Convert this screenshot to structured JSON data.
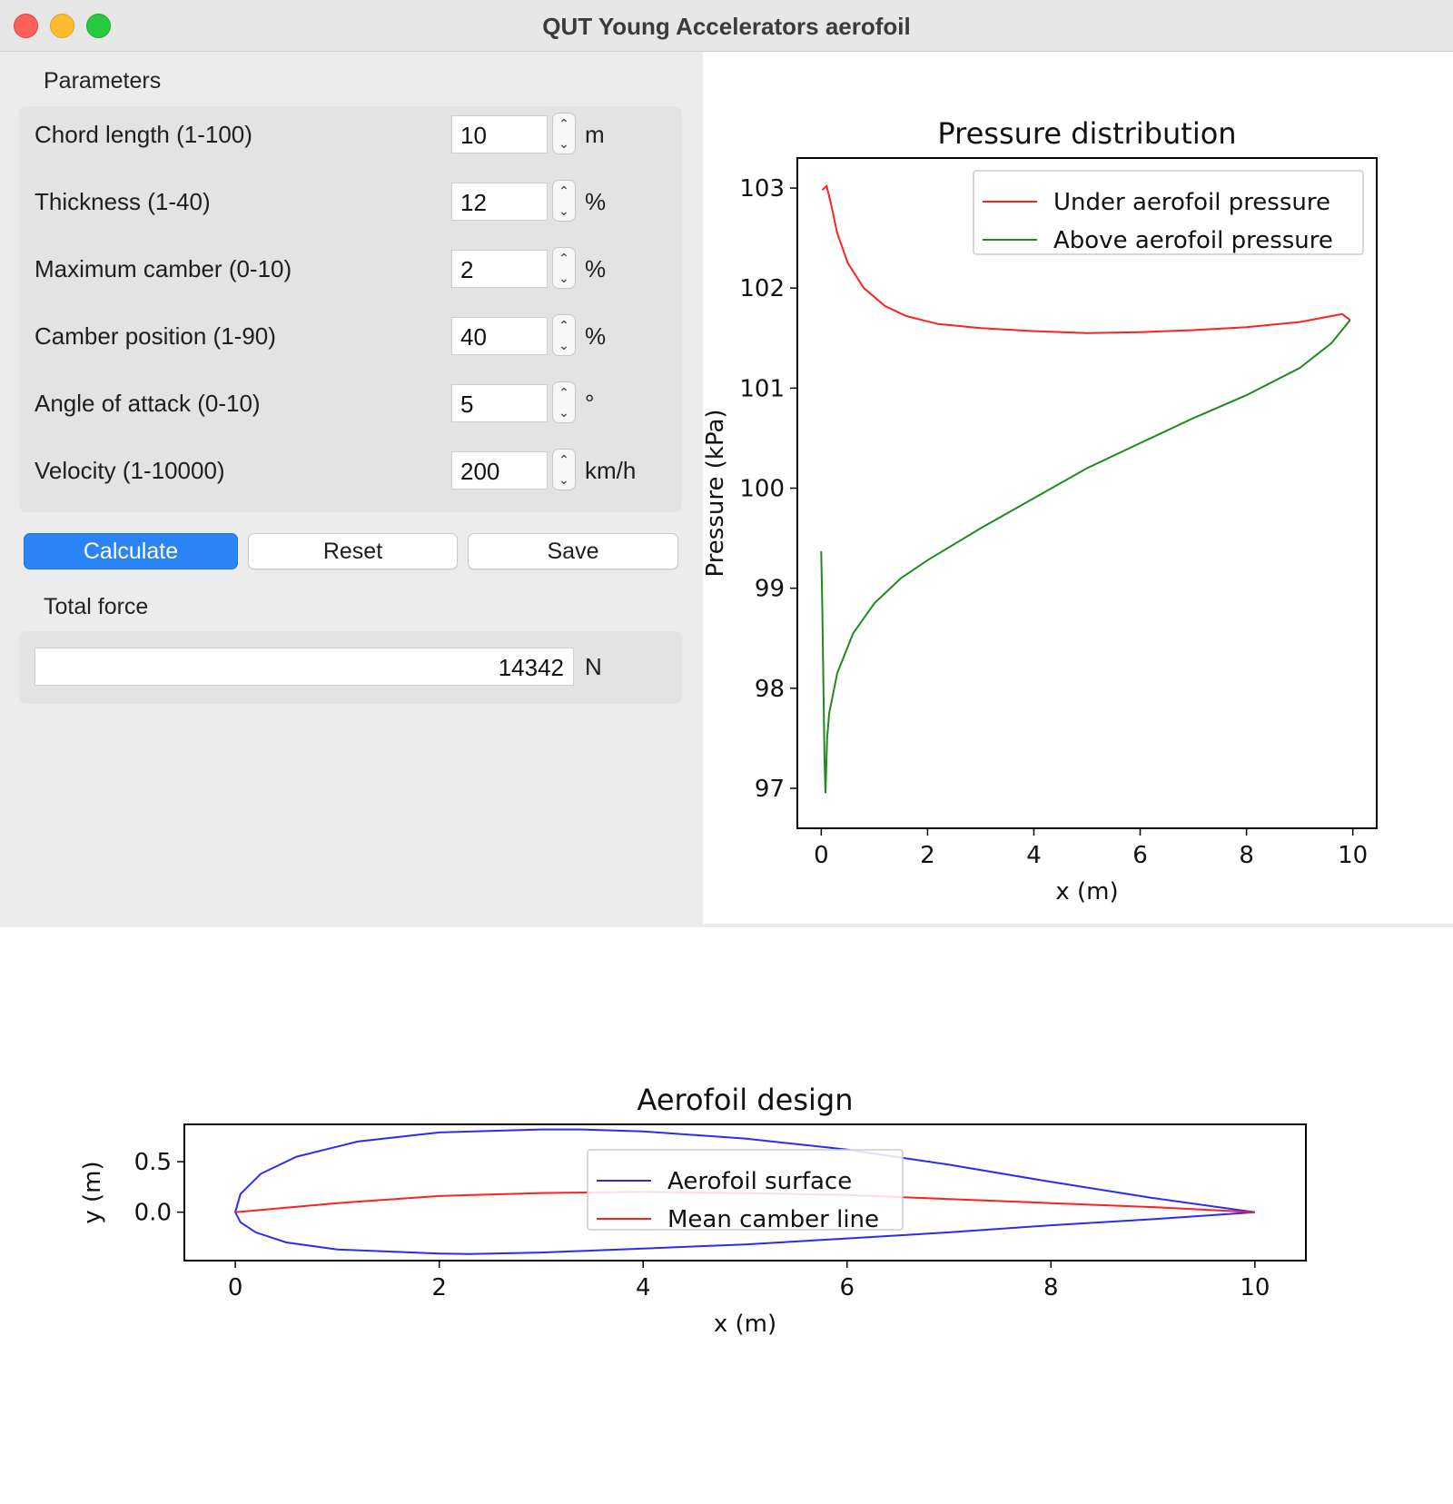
{
  "window": {
    "title": "QUT Young Accelerators aerofoil"
  },
  "parameters": {
    "group_title": "Parameters",
    "rows": [
      {
        "label": "Chord length (1-100)",
        "value": "10",
        "unit": "m"
      },
      {
        "label": "Thickness (1-40)",
        "value": "12",
        "unit": "%"
      },
      {
        "label": "Maximum camber (0-10)",
        "value": "2",
        "unit": "%"
      },
      {
        "label": "Camber position (1-90)",
        "value": "40",
        "unit": "%"
      },
      {
        "label": "Angle of attack (0-10)",
        "value": "5",
        "unit": "°"
      },
      {
        "label": "Velocity (1-10000)",
        "value": "200",
        "unit": "km/h"
      }
    ]
  },
  "buttons": {
    "calculate": "Calculate",
    "reset": "Reset",
    "save": "Save"
  },
  "force": {
    "group_title": "Total force",
    "value": "14342",
    "unit": "N"
  },
  "colors": {
    "accent": "#2a84f6",
    "under": "#ff2020",
    "above": "#1e8a1e",
    "surface": "#2b2bf5",
    "camber": "#ff2020"
  },
  "chart_data": [
    {
      "type": "line",
      "title": "Pressure distribution",
      "xlabel": "x (m)",
      "ylabel": "Pressure (kPa)",
      "xlim": [
        -0.45,
        10.45
      ],
      "ylim": [
        96.6,
        103.3
      ],
      "xticks": [
        "0",
        "2",
        "4",
        "6",
        "8",
        "10"
      ],
      "yticks": [
        "97",
        "98",
        "99",
        "100",
        "101",
        "102",
        "103"
      ],
      "legend": "top-right",
      "series": [
        {
          "name": "Under aerofoil pressure",
          "color": "#ff2020",
          "points": [
            [
              0.02,
              102.98
            ],
            [
              0.1,
              103.02
            ],
            [
              0.18,
              102.85
            ],
            [
              0.3,
              102.55
            ],
            [
              0.5,
              102.25
            ],
            [
              0.8,
              102.0
            ],
            [
              1.2,
              101.82
            ],
            [
              1.6,
              101.72
            ],
            [
              2.2,
              101.64
            ],
            [
              3.0,
              101.6
            ],
            [
              4.0,
              101.57
            ],
            [
              5.0,
              101.55
            ],
            [
              6.0,
              101.56
            ],
            [
              7.0,
              101.58
            ],
            [
              8.0,
              101.61
            ],
            [
              9.0,
              101.66
            ],
            [
              9.6,
              101.72
            ],
            [
              9.8,
              101.74
            ],
            [
              9.95,
              101.68
            ]
          ]
        },
        {
          "name": "Above aerofoil pressure",
          "color": "#1e8a1e",
          "points": [
            [
              0.0,
              99.37
            ],
            [
              0.02,
              98.8
            ],
            [
              0.06,
              97.3
            ],
            [
              0.08,
              96.95
            ],
            [
              0.11,
              97.5
            ],
            [
              0.15,
              97.75
            ],
            [
              0.3,
              98.15
            ],
            [
              0.6,
              98.55
            ],
            [
              1.0,
              98.85
            ],
            [
              1.5,
              99.1
            ],
            [
              2.0,
              99.28
            ],
            [
              3.0,
              99.6
            ],
            [
              4.0,
              99.9
            ],
            [
              5.0,
              100.2
            ],
            [
              6.0,
              100.45
            ],
            [
              7.0,
              100.7
            ],
            [
              8.0,
              100.93
            ],
            [
              9.0,
              101.2
            ],
            [
              9.6,
              101.45
            ],
            [
              9.95,
              101.68
            ]
          ]
        }
      ]
    },
    {
      "type": "line",
      "title": "Aerofoil design",
      "xlabel": "x (m)",
      "ylabel": "y (m)",
      "xlim": [
        -0.5,
        10.5
      ],
      "ylim": [
        -0.48,
        0.87
      ],
      "xticks": [
        "0",
        "2",
        "4",
        "6",
        "8",
        "10"
      ],
      "yticks": [
        "0.0",
        "0.5"
      ],
      "legend": "top-center",
      "series": [
        {
          "name": "Aerofoil surface",
          "color": "#2b2bf5",
          "points": [
            [
              10,
              0.0
            ],
            [
              9,
              0.14
            ],
            [
              8,
              0.3
            ],
            [
              7,
              0.47
            ],
            [
              6,
              0.62
            ],
            [
              5,
              0.73
            ],
            [
              4,
              0.8
            ],
            [
              3.4,
              0.82
            ],
            [
              3,
              0.82
            ],
            [
              2,
              0.79
            ],
            [
              1.2,
              0.7
            ],
            [
              0.6,
              0.55
            ],
            [
              0.25,
              0.38
            ],
            [
              0.05,
              0.18
            ],
            [
              0,
              0.0
            ],
            [
              0.05,
              -0.1
            ],
            [
              0.2,
              -0.2
            ],
            [
              0.5,
              -0.3
            ],
            [
              1.0,
              -0.37
            ],
            [
              2.0,
              -0.41
            ],
            [
              2.3,
              -0.415
            ],
            [
              3,
              -0.4
            ],
            [
              4,
              -0.36
            ],
            [
              5,
              -0.32
            ],
            [
              6,
              -0.26
            ],
            [
              7,
              -0.2
            ],
            [
              8,
              -0.13
            ],
            [
              9,
              -0.07
            ],
            [
              10,
              0.0
            ]
          ]
        },
        {
          "name": "Mean camber line",
          "color": "#ff2020",
          "points": [
            [
              0,
              0.0
            ],
            [
              1,
              0.09
            ],
            [
              2,
              0.16
            ],
            [
              3,
              0.19
            ],
            [
              4,
              0.2
            ],
            [
              5,
              0.19
            ],
            [
              6,
              0.17
            ],
            [
              7,
              0.13
            ],
            [
              8,
              0.09
            ],
            [
              9,
              0.05
            ],
            [
              10,
              0.0
            ]
          ]
        }
      ]
    }
  ]
}
